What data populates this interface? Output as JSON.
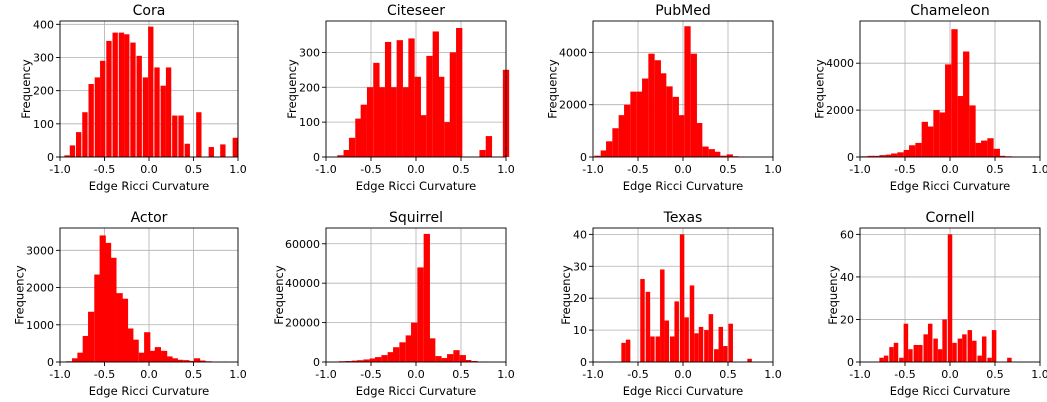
{
  "style": {
    "bar_color": "#ff0000",
    "grid": true,
    "grid_color": "#b0b0b0"
  },
  "chart_data": [
    {
      "type": "bar",
      "title": "Cora",
      "xlabel": "Edge Ricci Curvature",
      "ylabel": "Frequency",
      "xlim": [
        -1.0,
        1.0
      ],
      "ylim": [
        0,
        410
      ],
      "xticks": [
        "-1.0",
        "-0.5",
        "0.0",
        "0.5",
        "1.0"
      ],
      "xtick_values": [
        -1.0,
        -0.5,
        0.0,
        0.5,
        1.0
      ],
      "yticks": [
        "0",
        "100",
        "200",
        "300",
        "400"
      ],
      "ytick_values": [
        0,
        100,
        200,
        300,
        400
      ],
      "bins": [
        -0.92,
        -0.86,
        -0.79,
        -0.72,
        -0.65,
        -0.58,
        -0.52,
        -0.45,
        -0.38,
        -0.31,
        -0.25,
        -0.18,
        -0.11,
        -0.04,
        0.02,
        0.09,
        0.16,
        0.22,
        0.29,
        0.36,
        0.43,
        0.49,
        0.56,
        0.63,
        0.7,
        0.76,
        0.83,
        0.9,
        0.97
      ],
      "values": [
        5,
        35,
        75,
        135,
        220,
        240,
        290,
        350,
        375,
        375,
        370,
        345,
        305,
        240,
        393,
        270,
        215,
        270,
        125,
        125,
        40,
        0,
        135,
        0,
        30,
        0,
        38,
        0,
        58
      ]
    },
    {
      "type": "bar",
      "title": "Citeseer",
      "xlabel": "Edge Ricci Curvature",
      "ylabel": "Frequency",
      "xlim": [
        -1.0,
        1.0
      ],
      "ylim": [
        0,
        390
      ],
      "xticks": [
        "-1.0",
        "-0.5",
        "0.0",
        "0.5",
        "1.0"
      ],
      "xtick_values": [
        -1.0,
        -0.5,
        0.0,
        0.5,
        1.0
      ],
      "yticks": [
        "0",
        "100",
        "200",
        "300"
      ],
      "ytick_values": [
        0,
        100,
        200,
        300
      ],
      "bins": [
        -0.84,
        -0.77,
        -0.71,
        -0.64,
        -0.58,
        -0.51,
        -0.44,
        -0.38,
        -0.31,
        -0.25,
        -0.18,
        -0.11,
        -0.05,
        0.02,
        0.08,
        0.15,
        0.22,
        0.28,
        0.35,
        0.41,
        0.48,
        0.55,
        0.61,
        0.68,
        0.74,
        0.81,
        0.88,
        0.94,
        1.0
      ],
      "values": [
        5,
        20,
        55,
        110,
        150,
        200,
        270,
        200,
        330,
        200,
        335,
        200,
        340,
        230,
        120,
        290,
        360,
        230,
        100,
        300,
        370,
        0,
        0,
        0,
        20,
        60,
        0,
        0,
        250
      ]
    },
    {
      "type": "bar",
      "title": "PubMed",
      "xlabel": "Edge Ricci Curvature",
      "ylabel": "Frequency",
      "xlim": [
        -1.0,
        1.0
      ],
      "ylim": [
        0,
        5200
      ],
      "xticks": [
        "-1.0",
        "-0.5",
        "0.0",
        "0.5",
        "1.0"
      ],
      "xtick_values": [
        -1.0,
        -0.5,
        0.0,
        0.5,
        1.0
      ],
      "yticks": [
        "0",
        "2000",
        "4000"
      ],
      "ytick_values": [
        0,
        2000,
        4000
      ],
      "bins": [
        -0.95,
        -0.88,
        -0.82,
        -0.75,
        -0.68,
        -0.62,
        -0.55,
        -0.48,
        -0.42,
        -0.35,
        -0.28,
        -0.22,
        -0.15,
        -0.08,
        -0.02,
        0.05,
        0.12,
        0.18,
        0.25,
        0.32,
        0.38,
        0.45,
        0.52,
        0.58,
        0.65,
        0.72,
        0.78,
        0.85
      ],
      "values": [
        50,
        250,
        600,
        1100,
        1600,
        2000,
        2500,
        2500,
        3000,
        3950,
        3700,
        3200,
        2700,
        2300,
        1600,
        5000,
        3950,
        1300,
        400,
        300,
        200,
        50,
        100,
        30,
        10,
        0,
        0,
        0
      ]
    },
    {
      "type": "bar",
      "title": "Chameleon",
      "xlabel": "Edge Ricci Curvature",
      "ylabel": "Frequency",
      "xlim": [
        -1.0,
        1.0
      ],
      "ylim": [
        0,
        5800
      ],
      "xticks": [
        "-1.0",
        "-0.5",
        "0.0",
        "0.5",
        "1.0"
      ],
      "xtick_values": [
        -1.0,
        -0.5,
        0.0,
        0.5,
        1.0
      ],
      "yticks": [
        "0",
        "2000",
        "4000"
      ],
      "ytick_values": [
        0,
        2000,
        4000
      ],
      "bins": [
        -0.95,
        -0.88,
        -0.82,
        -0.75,
        -0.68,
        -0.62,
        -0.55,
        -0.48,
        -0.42,
        -0.35,
        -0.28,
        -0.22,
        -0.15,
        -0.08,
        -0.02,
        0.05,
        0.12,
        0.18,
        0.25,
        0.32,
        0.38,
        0.45,
        0.52,
        0.58,
        0.65,
        0.72,
        0.78,
        0.85
      ],
      "values": [
        30,
        50,
        50,
        80,
        100,
        150,
        200,
        300,
        500,
        600,
        1500,
        1300,
        2000,
        1900,
        3950,
        5450,
        2600,
        4500,
        2200,
        600,
        700,
        800,
        350,
        50,
        30,
        10,
        0,
        0
      ]
    },
    {
      "type": "bar",
      "title": "Actor",
      "xlabel": "Edge Ricci Curvature",
      "ylabel": "Frequency",
      "xlim": [
        -1.0,
        1.0
      ],
      "ylim": [
        0,
        3600
      ],
      "xticks": [
        "-1.0",
        "-0.5",
        "0.0",
        "0.5",
        "1.0"
      ],
      "xtick_values": [
        -1.0,
        -0.5,
        0.0,
        0.5,
        1.0
      ],
      "yticks": [
        "0",
        "1000",
        "2000",
        "3000"
      ],
      "ytick_values": [
        0,
        1000,
        2000,
        3000
      ],
      "bins": [
        -0.9,
        -0.83,
        -0.77,
        -0.71,
        -0.65,
        -0.58,
        -0.52,
        -0.46,
        -0.4,
        -0.33,
        -0.27,
        -0.21,
        -0.15,
        -0.08,
        -0.02,
        0.04,
        0.1,
        0.17,
        0.23,
        0.29,
        0.35,
        0.42,
        0.48,
        0.54,
        0.6,
        0.67,
        0.73,
        0.79,
        0.85
      ],
      "values": [
        20,
        100,
        250,
        700,
        1350,
        2350,
        3400,
        3200,
        2800,
        1850,
        1700,
        900,
        600,
        250,
        800,
        300,
        400,
        300,
        150,
        100,
        60,
        50,
        30,
        100,
        40,
        20,
        0,
        0,
        10
      ]
    },
    {
      "type": "bar",
      "title": "Squirrel",
      "xlabel": "Edge Ricci Curvature",
      "ylabel": "Frequency",
      "xlim": [
        -1.0,
        1.0
      ],
      "ylim": [
        0,
        68000
      ],
      "xticks": [
        "-1.0",
        "-0.5",
        "0.0",
        "0.5",
        "1.0"
      ],
      "xtick_values": [
        -1.0,
        -0.5,
        0.0,
        0.5,
        1.0
      ],
      "yticks": [
        "0",
        "20000",
        "40000",
        "60000"
      ],
      "ytick_values": [
        0,
        20000,
        40000,
        60000
      ],
      "bins": [
        -0.95,
        -0.88,
        -0.82,
        -0.75,
        -0.68,
        -0.62,
        -0.55,
        -0.48,
        -0.42,
        -0.35,
        -0.28,
        -0.22,
        -0.15,
        -0.08,
        -0.02,
        0.05,
        0.12,
        0.18,
        0.25,
        0.32,
        0.38,
        0.45,
        0.52,
        0.58,
        0.65,
        0.72,
        0.78,
        0.85
      ],
      "values": [
        100,
        200,
        400,
        500,
        700,
        900,
        1300,
        1800,
        2500,
        3500,
        5000,
        7500,
        10000,
        13500,
        20000,
        48000,
        65000,
        12000,
        3000,
        2000,
        4000,
        6000,
        3500,
        1000,
        500,
        200,
        100,
        0
      ]
    },
    {
      "type": "bar",
      "title": "Texas",
      "xlabel": "Edge Ricci Curvature",
      "ylabel": "Frequency",
      "xlim": [
        -1.0,
        1.0
      ],
      "ylim": [
        0,
        42
      ],
      "xticks": [
        "-1.0",
        "-0.5",
        "0.0",
        "0.5",
        "1.0"
      ],
      "xtick_values": [
        -1.0,
        -0.5,
        0.0,
        0.5,
        1.0
      ],
      "yticks": [
        "0",
        "10",
        "20",
        "30",
        "40"
      ],
      "ytick_values": [
        0,
        10,
        20,
        30,
        40
      ],
      "bins": [
        -0.66,
        -0.61,
        -0.55,
        -0.5,
        -0.45,
        -0.39,
        -0.34,
        -0.28,
        -0.23,
        -0.18,
        -0.12,
        -0.07,
        -0.01,
        0.04,
        0.1,
        0.15,
        0.2,
        0.26,
        0.31,
        0.37,
        0.42,
        0.47,
        0.53,
        0.58,
        0.64,
        0.69,
        0.74
      ],
      "values": [
        6,
        7,
        0,
        0,
        26,
        22,
        8,
        8,
        29,
        13,
        8,
        19,
        40,
        14,
        24,
        9,
        11,
        10,
        15,
        4,
        11,
        5,
        12,
        0,
        0,
        0,
        1
      ]
    },
    {
      "type": "bar",
      "title": "Cornell",
      "xlabel": "Edge Ricci Curvature",
      "ylabel": "Frequency",
      "xlim": [
        -1.0,
        1.0
      ],
      "ylim": [
        0,
        63
      ],
      "xticks": [
        "-1.0",
        "-0.5",
        "0.0",
        "0.5",
        "1.0"
      ],
      "xtick_values": [
        -1.0,
        -0.5,
        0.0,
        0.5,
        1.0
      ],
      "yticks": [
        "0",
        "20",
        "40",
        "60"
      ],
      "ytick_values": [
        0,
        20,
        40,
        60
      ],
      "bins": [
        -0.76,
        -0.71,
        -0.65,
        -0.6,
        -0.54,
        -0.49,
        -0.44,
        -0.38,
        -0.33,
        -0.27,
        -0.22,
        -0.16,
        -0.11,
        -0.06,
        0.0,
        0.05,
        0.11,
        0.16,
        0.22,
        0.27,
        0.33,
        0.38,
        0.44,
        0.49,
        0.55,
        0.6,
        0.66
      ],
      "values": [
        2,
        3,
        7,
        9,
        2,
        18,
        6,
        8,
        8,
        13,
        18,
        11,
        6,
        20,
        60,
        9,
        11,
        13,
        15,
        10,
        3,
        12,
        2,
        15,
        0,
        0,
        2
      ]
    }
  ]
}
